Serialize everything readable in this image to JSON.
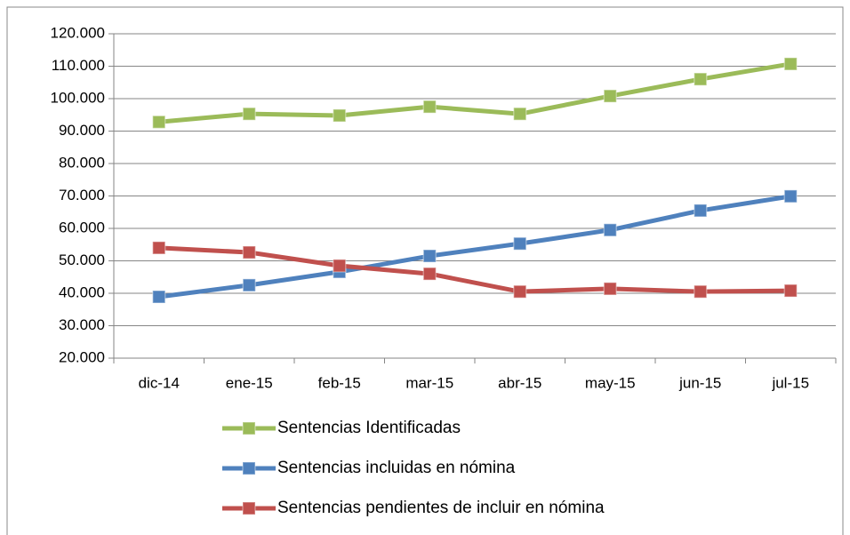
{
  "chart_data": {
    "type": "line",
    "categories": [
      "dic-14",
      "ene-15",
      "feb-15",
      "mar-15",
      "abr-15",
      "may-15",
      "jun-15",
      "jul-15"
    ],
    "series": [
      {
        "name": "Sentencias Identificadas",
        "color": "#9bbb59",
        "values": [
          92800,
          95300,
          94800,
          97500,
          95300,
          100800,
          106000,
          110700
        ]
      },
      {
        "name": "Sentencias incluidas en nómina",
        "color": "#4f81bd",
        "values": [
          38900,
          42500,
          46600,
          51500,
          55300,
          59500,
          65500,
          69900
        ]
      },
      {
        "name": "Sentencias pendientes de incluir en nómina",
        "color": "#c0504d",
        "values": [
          54000,
          52600,
          48500,
          46000,
          40500,
          41400,
          40500,
          40800
        ]
      }
    ],
    "ylim": [
      20000,
      120000
    ],
    "yticks": [
      {
        "value": 20000,
        "label": "20.000"
      },
      {
        "value": 30000,
        "label": "30.000"
      },
      {
        "value": 40000,
        "label": "40.000"
      },
      {
        "value": 50000,
        "label": "50.000"
      },
      {
        "value": 60000,
        "label": "60.000"
      },
      {
        "value": 70000,
        "label": "70.000"
      },
      {
        "value": 80000,
        "label": "80.000"
      },
      {
        "value": 90000,
        "label": "90.000"
      },
      {
        "value": 100000,
        "label": "100.000"
      },
      {
        "value": 110000,
        "label": "110.000"
      },
      {
        "value": 120000,
        "label": "120.000"
      }
    ],
    "grid": true,
    "legend": "bottom"
  }
}
